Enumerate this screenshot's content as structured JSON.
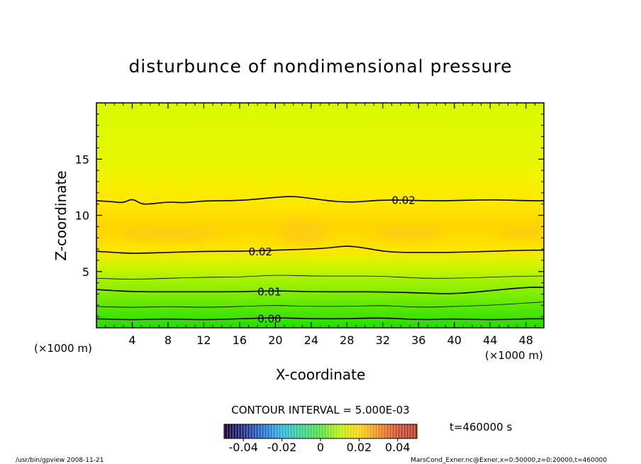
{
  "chart_data": {
    "type": "heatmap",
    "title": "disturbunce of nondimensional pressure",
    "xlabel": "X-coordinate",
    "ylabel": "Z-coordinate",
    "x_unit": "(×1000 m)",
    "y_unit": "(×1000 m)",
    "xlim": [
      0,
      50
    ],
    "ylim": [
      0,
      20
    ],
    "x_ticks": [
      "4",
      "8",
      "12",
      "16",
      "20",
      "24",
      "28",
      "32",
      "36",
      "40",
      "44",
      "48"
    ],
    "y_ticks": [
      "5",
      "10",
      "15"
    ],
    "x_tick_values": [
      4,
      8,
      12,
      16,
      20,
      24,
      28,
      32,
      36,
      40,
      44,
      48
    ],
    "y_tick_values": [
      5,
      10,
      15
    ],
    "contour_interval_text": "CONTOUR INTERVAL = 5.000E-03",
    "contour_interval": 0.005,
    "time_label": "t=460000 s",
    "colorbar": {
      "range": [
        -0.05,
        0.05
      ],
      "tick_labels": [
        "-0.04",
        "-0.02",
        "0",
        "0.02",
        "0.04"
      ],
      "tick_values": [
        -0.04,
        -0.02,
        0,
        0.02,
        0.04
      ],
      "colors": [
        "#1a0033",
        "#1e2a8c",
        "#1f6fd1",
        "#27b4e0",
        "#31d68a",
        "#4fe03a",
        "#b8f000",
        "#ffd400",
        "#f08a1e",
        "#d2492a",
        "#b23a28"
      ]
    },
    "background_profile": [
      {
        "z": 0,
        "color": "#22dd00"
      },
      {
        "z": 1.5,
        "color": "#4ee600"
      },
      {
        "z": 3,
        "color": "#7fed00"
      },
      {
        "z": 4.5,
        "color": "#aef200"
      },
      {
        "z": 5.6,
        "color": "#d4f500"
      },
      {
        "z": 7,
        "color": "#ffe400"
      },
      {
        "z": 9,
        "color": "#ffd400"
      },
      {
        "z": 11,
        "color": "#ffe600"
      },
      {
        "z": 13,
        "color": "#f4f200"
      },
      {
        "z": 16,
        "color": "#e3f800"
      },
      {
        "z": 20,
        "color": "#d9fa00"
      }
    ],
    "contours": [
      {
        "level": 0.0,
        "label": "0.00",
        "label_x": 18,
        "major": true,
        "x": [
          0,
          4,
          8,
          12,
          16,
          20,
          24,
          28,
          32,
          36,
          40,
          44,
          48,
          50
        ],
        "z": [
          0.8,
          0.7,
          0.8,
          0.7,
          0.8,
          0.9,
          0.8,
          0.8,
          0.9,
          0.7,
          0.8,
          0.7,
          0.8,
          0.8
        ]
      },
      {
        "level": 0.005,
        "label": "",
        "major": false,
        "x": [
          0,
          4,
          8,
          12,
          16,
          20,
          24,
          28,
          32,
          36,
          40,
          44,
          48,
          50
        ],
        "z": [
          1.9,
          1.8,
          1.9,
          1.8,
          1.9,
          2.0,
          1.9,
          1.9,
          2.0,
          1.8,
          1.9,
          2.0,
          2.2,
          2.3
        ]
      },
      {
        "level": 0.01,
        "label": "0.01",
        "label_x": 18,
        "major": true,
        "x": [
          0,
          4,
          8,
          12,
          16,
          20,
          24,
          28,
          32,
          36,
          40,
          44,
          48,
          50
        ],
        "z": [
          3.4,
          3.2,
          3.2,
          3.2,
          3.2,
          3.3,
          3.2,
          3.2,
          3.2,
          3.1,
          3.0,
          3.3,
          3.6,
          3.6
        ]
      },
      {
        "level": 0.015,
        "label": "",
        "major": false,
        "x": [
          0,
          4,
          8,
          12,
          16,
          20,
          24,
          28,
          32,
          36,
          40,
          44,
          48,
          50
        ],
        "z": [
          4.4,
          4.3,
          4.4,
          4.5,
          4.5,
          4.7,
          4.6,
          4.6,
          4.6,
          4.4,
          4.4,
          4.5,
          4.6,
          4.6
        ]
      },
      {
        "level": 0.02,
        "label": "0.02",
        "label_x": 17,
        "major": true,
        "x": [
          0,
          2,
          4,
          8,
          12,
          16,
          20,
          24,
          26,
          28,
          30,
          32,
          34,
          36,
          40,
          44,
          48,
          50
        ],
        "z": [
          6.8,
          6.7,
          6.6,
          6.7,
          6.8,
          6.8,
          6.9,
          7.0,
          7.1,
          7.3,
          7.1,
          6.8,
          6.7,
          6.7,
          6.7,
          6.8,
          6.9,
          6.9
        ]
      },
      {
        "level": 0.02,
        "label": "0.02",
        "label_x": 33,
        "major": true,
        "x": [
          0,
          2,
          3,
          4,
          5,
          6,
          8,
          10,
          12,
          16,
          20,
          22,
          24,
          28,
          32,
          36,
          40,
          44,
          48,
          50
        ],
        "z": [
          11.3,
          11.2,
          11.1,
          11.5,
          11.0,
          11.0,
          11.2,
          11.1,
          11.3,
          11.3,
          11.6,
          11.7,
          11.5,
          11.1,
          11.4,
          11.3,
          11.3,
          11.4,
          11.3,
          11.3
        ]
      }
    ],
    "blobs": [
      {
        "x": 8,
        "z": 8.3,
        "rx": 6,
        "rz": 0.6
      },
      {
        "x": 23,
        "z": 8.5,
        "rx": 2.5,
        "rz": 1.1
      },
      {
        "x": 35,
        "z": 8.4,
        "rx": 3.5,
        "rz": 0.7
      },
      {
        "x": 47.5,
        "z": 8.3,
        "rx": 2.5,
        "rz": 0.5
      }
    ],
    "blob_color": "#ffcb12"
  },
  "footer": {
    "left": "/usr/bin/gpview   2008-11-21",
    "right": "MarsCond_Exner.nc@Exner,x=0:50000,z=0:20000,t=460000"
  }
}
